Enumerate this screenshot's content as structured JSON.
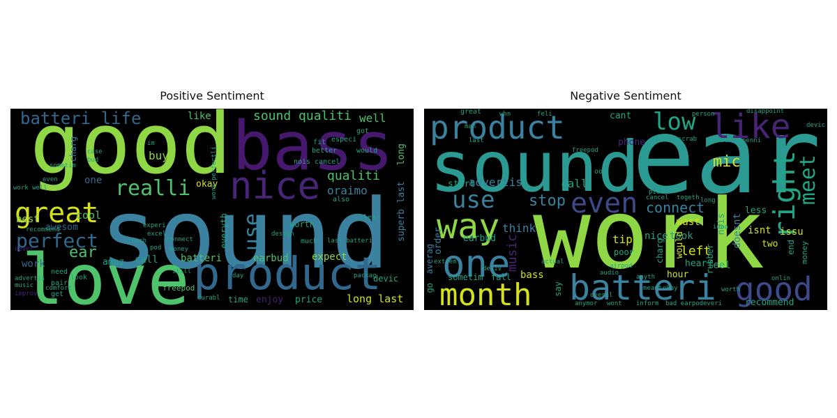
{
  "colors": {
    "dark_purple": "#46196e",
    "purple": "#482475",
    "indigo": "#3e4989",
    "blue": "#31688e",
    "steel": "#3b82a0",
    "teal": "#2a9a93",
    "sea": "#21a585",
    "green": "#4ec36b",
    "lime": "#8fd744",
    "yellow": "#d4e21a",
    "background": "#000000"
  },
  "panels": [
    {
      "title": "Positive Sentiment",
      "words": [
        {
          "t": "sound",
          "c": "steel"
        },
        {
          "t": "good",
          "c": "lime"
        },
        {
          "t": "bass",
          "c": "dark_purple"
        },
        {
          "t": "love",
          "c": "green"
        },
        {
          "t": "product",
          "c": "blue"
        },
        {
          "t": "nice",
          "c": "purple"
        },
        {
          "t": "great",
          "c": "yellow"
        },
        {
          "t": "realli",
          "c": "green"
        },
        {
          "t": "perfect",
          "c": "blue"
        },
        {
          "t": "batteri life",
          "c": "blue"
        },
        {
          "t": "sound qualiti",
          "c": "green"
        },
        {
          "t": "qualiti",
          "c": "green"
        },
        {
          "t": "oraimo",
          "c": "steel"
        },
        {
          "t": "use",
          "c": "steel"
        },
        {
          "t": "ear",
          "c": "green"
        },
        {
          "t": "best",
          "c": "lime"
        },
        {
          "t": "cool",
          "c": "green"
        },
        {
          "t": "awesom",
          "c": "blue"
        },
        {
          "t": "okay",
          "c": "yellow"
        },
        {
          "t": "like",
          "c": "green"
        },
        {
          "t": "well",
          "c": "green"
        },
        {
          "t": "buy",
          "c": "lime"
        },
        {
          "t": "one",
          "c": "blue"
        },
        {
          "t": "charg",
          "c": "steel"
        },
        {
          "t": "batteri",
          "c": "green"
        },
        {
          "t": "earbud",
          "c": "green"
        },
        {
          "t": "expect",
          "c": "lime"
        },
        {
          "t": "long last",
          "c": "yellow"
        },
        {
          "t": "price",
          "c": "sea"
        },
        {
          "t": "enjoy",
          "c": "purple"
        },
        {
          "t": "time",
          "c": "sea"
        },
        {
          "t": "call",
          "c": "sea"
        },
        {
          "t": "amaz",
          "c": "sea"
        },
        {
          "t": "work",
          "c": "blue"
        },
        {
          "t": "superb",
          "c": "steel"
        },
        {
          "t": "last",
          "c": "steel"
        },
        {
          "t": "long",
          "c": "green"
        },
        {
          "t": "worth",
          "c": "sea"
        },
        {
          "t": "everyth",
          "c": "sea"
        },
        {
          "t": "devic",
          "c": "sea"
        },
        {
          "t": "got",
          "c": "sea"
        },
        {
          "t": "fit",
          "c": "sea"
        },
        {
          "t": "especi",
          "c": "sea"
        },
        {
          "t": "better",
          "c": "sea"
        },
        {
          "t": "would",
          "c": "sea"
        },
        {
          "t": "recommend",
          "c": "sea"
        },
        {
          "t": "much",
          "c": "sea"
        },
        {
          "t": "clear",
          "c": "sea"
        },
        {
          "t": "also",
          "c": "sea"
        },
        {
          "t": "freepod",
          "c": "green"
        },
        {
          "t": "need",
          "c": "sea"
        },
        {
          "t": "pair",
          "c": "sea"
        },
        {
          "t": "get",
          "c": "sea"
        },
        {
          "t": "look",
          "c": "sea"
        },
        {
          "t": "touch",
          "c": "sea"
        },
        {
          "t": "excel",
          "c": "sea"
        },
        {
          "t": "experi",
          "c": "sea"
        },
        {
          "t": "sometim",
          "c": "sea"
        },
        {
          "t": "even",
          "c": "sea"
        },
        {
          "t": "pod",
          "c": "sea"
        },
        {
          "t": "connect",
          "c": "sea"
        },
        {
          "t": "money",
          "c": "sea"
        },
        {
          "t": "comfort",
          "c": "sea"
        },
        {
          "t": "design",
          "c": "sea"
        },
        {
          "t": "still",
          "c": "sea"
        },
        {
          "t": "durabl",
          "c": "sea"
        },
        {
          "t": "day",
          "c": "sea"
        },
        {
          "t": "case",
          "c": "sea"
        },
        {
          "t": "bud",
          "c": "sea"
        },
        {
          "t": "im",
          "c": "sea"
        },
        {
          "t": "nois cancel",
          "c": "sea"
        },
        {
          "t": "work perfectli",
          "c": "sea"
        },
        {
          "t": "last batteri",
          "c": "sea"
        },
        {
          "t": "work well",
          "c": "sea"
        },
        {
          "t": "advertis",
          "c": "sea"
        },
        {
          "t": "improv",
          "c": "purple"
        },
        {
          "t": "music",
          "c": "sea"
        },
        {
          "t": "never",
          "c": "purple"
        },
        {
          "t": "packag",
          "c": "sea"
        }
      ]
    },
    {
      "title": "Negative Sentiment",
      "words": [
        {
          "t": "work",
          "c": "lime"
        },
        {
          "t": "ear",
          "c": "teal"
        },
        {
          "t": "sound",
          "c": "teal"
        },
        {
          "t": "product",
          "c": "steel"
        },
        {
          "t": "month",
          "c": "yellow"
        },
        {
          "t": "batteri",
          "c": "steel"
        },
        {
          "t": "way",
          "c": "lime"
        },
        {
          "t": "one",
          "c": "steel"
        },
        {
          "t": "good",
          "c": "indigo"
        },
        {
          "t": "like",
          "c": "purple"
        },
        {
          "t": "right",
          "c": "sea"
        },
        {
          "t": "even",
          "c": "indigo"
        },
        {
          "t": "meet",
          "c": "sea"
        },
        {
          "t": "low",
          "c": "sea"
        },
        {
          "t": "use",
          "c": "steel"
        },
        {
          "t": "stop",
          "c": "steel"
        },
        {
          "t": "connect",
          "c": "steel"
        },
        {
          "t": "mic",
          "c": "yellow"
        },
        {
          "t": "music",
          "c": "purple"
        },
        {
          "t": "advertis",
          "c": "steel"
        },
        {
          "t": "call",
          "c": "sea"
        },
        {
          "t": "start",
          "c": "sea"
        },
        {
          "t": "think",
          "c": "steel"
        },
        {
          "t": "nice",
          "c": "sea"
        },
        {
          "t": "left",
          "c": "yellow"
        },
        {
          "t": "tip",
          "c": "yellow"
        },
        {
          "t": "poor",
          "c": "sea"
        },
        {
          "t": "phone",
          "c": "purple"
        },
        {
          "t": "cant",
          "c": "sea"
        },
        {
          "t": "wast",
          "c": "yellow"
        },
        {
          "t": "nois",
          "c": "sea"
        },
        {
          "t": "doesnt",
          "c": "steel"
        },
        {
          "t": "isnt",
          "c": "yellow"
        },
        {
          "t": "less",
          "c": "sea"
        },
        {
          "t": "issu",
          "c": "yellow"
        },
        {
          "t": "two",
          "c": "yellow"
        },
        {
          "t": "end",
          "c": "sea"
        },
        {
          "t": "money",
          "c": "sea"
        },
        {
          "t": "feel",
          "c": "sea"
        },
        {
          "t": "hour",
          "c": "yellow"
        },
        {
          "t": "hear",
          "c": "sea"
        },
        {
          "t": "took",
          "c": "sea"
        },
        {
          "t": "charg",
          "c": "sea"
        },
        {
          "t": "rubber",
          "c": "sea"
        },
        {
          "t": "would",
          "c": "yellow"
        },
        {
          "t": "bass",
          "c": "yellow"
        },
        {
          "t": "say",
          "c": "sea"
        },
        {
          "t": "recommend",
          "c": "sea"
        },
        {
          "t": "earbud",
          "c": "sea"
        },
        {
          "t": "order",
          "c": "steel"
        },
        {
          "t": "go",
          "c": "sea"
        },
        {
          "t": "averag",
          "c": "steel"
        },
        {
          "t": "sometim",
          "c": "sea"
        },
        {
          "t": "fall",
          "c": "sea"
        },
        {
          "t": "great",
          "c": "sea"
        },
        {
          "t": "disappoint",
          "c": "sea"
        },
        {
          "t": "devic",
          "c": "sea"
        },
        {
          "t": "beat",
          "c": "sea"
        },
        {
          "t": "penni",
          "c": "sea"
        },
        {
          "t": "cancel",
          "c": "sea"
        },
        {
          "t": "bad earpod",
          "c": "sea"
        },
        {
          "t": "everi",
          "c": "sea"
        },
        {
          "t": "inform",
          "c": "sea"
        },
        {
          "t": "wont",
          "c": "sea"
        },
        {
          "t": "anymor",
          "c": "sea"
        },
        {
          "t": "piec",
          "c": "sea"
        },
        {
          "t": "togeth",
          "c": "sea"
        },
        {
          "t": "ooo",
          "c": "sea"
        },
        {
          "t": "freepod",
          "c": "sea"
        },
        {
          "t": "last",
          "c": "sea"
        },
        {
          "t": "man",
          "c": "sea"
        },
        {
          "t": "whn",
          "c": "sea"
        },
        {
          "t": "feli",
          "c": "sea"
        },
        {
          "t": "okay",
          "c": "sea"
        },
        {
          "t": "worth",
          "c": "sea"
        },
        {
          "t": "long",
          "c": "sea"
        },
        {
          "t": "idea",
          "c": "sea"
        },
        {
          "t": "scrab",
          "c": "sea"
        },
        {
          "t": "person",
          "c": "sea"
        },
        {
          "t": "onlin",
          "c": "sea"
        },
        {
          "t": "airpod",
          "c": "sea"
        },
        {
          "t": "actual",
          "c": "sea"
        },
        {
          "t": "deliv",
          "c": "sea"
        },
        {
          "t": "extrem",
          "c": "sea"
        },
        {
          "t": "overal",
          "c": "sea"
        },
        {
          "t": "anyth",
          "c": "sea"
        },
        {
          "t": "audio",
          "c": "sea"
        },
        {
          "t": "meant",
          "c": "sea"
        }
      ]
    }
  ]
}
